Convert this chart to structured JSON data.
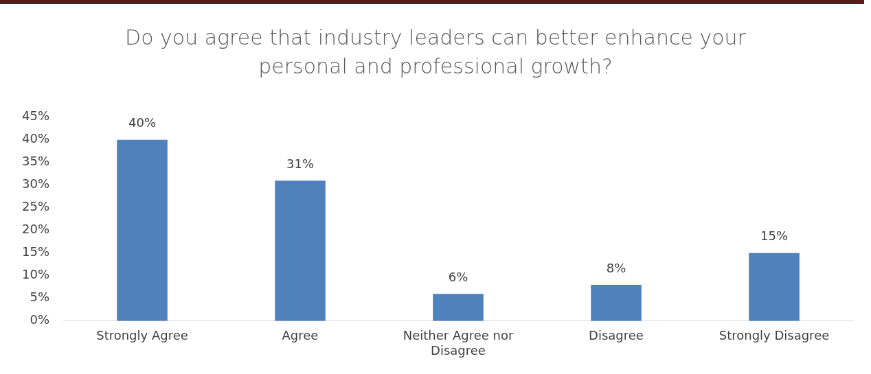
{
  "chart_data": {
    "type": "bar",
    "title": "Do you agree that industry leaders can better enhance your personal and professional growth?",
    "categories": [
      "Strongly Agree",
      "Agree",
      "Neither Agree nor Disagree",
      "Disagree",
      "Strongly Disagree"
    ],
    "values": [
      40,
      31,
      6,
      8,
      15
    ],
    "color": "#4f81bd",
    "value_labels": [
      "40%",
      "31%",
      "6%",
      "8%",
      "15%"
    ],
    "ylim": [
      0,
      45
    ],
    "yticks": [
      {
        "value": 0,
        "label": "0%"
      },
      {
        "value": 5,
        "label": "5%"
      },
      {
        "value": 10,
        "label": "10%"
      },
      {
        "value": 15,
        "label": "15%"
      },
      {
        "value": 20,
        "label": "20%"
      },
      {
        "value": 25,
        "label": "25%"
      },
      {
        "value": 30,
        "label": "30%"
      },
      {
        "value": 35,
        "label": "35%"
      },
      {
        "value": 40,
        "label": "40%"
      },
      {
        "value": 45,
        "label": "45%"
      }
    ],
    "grid": false,
    "legend": false
  }
}
